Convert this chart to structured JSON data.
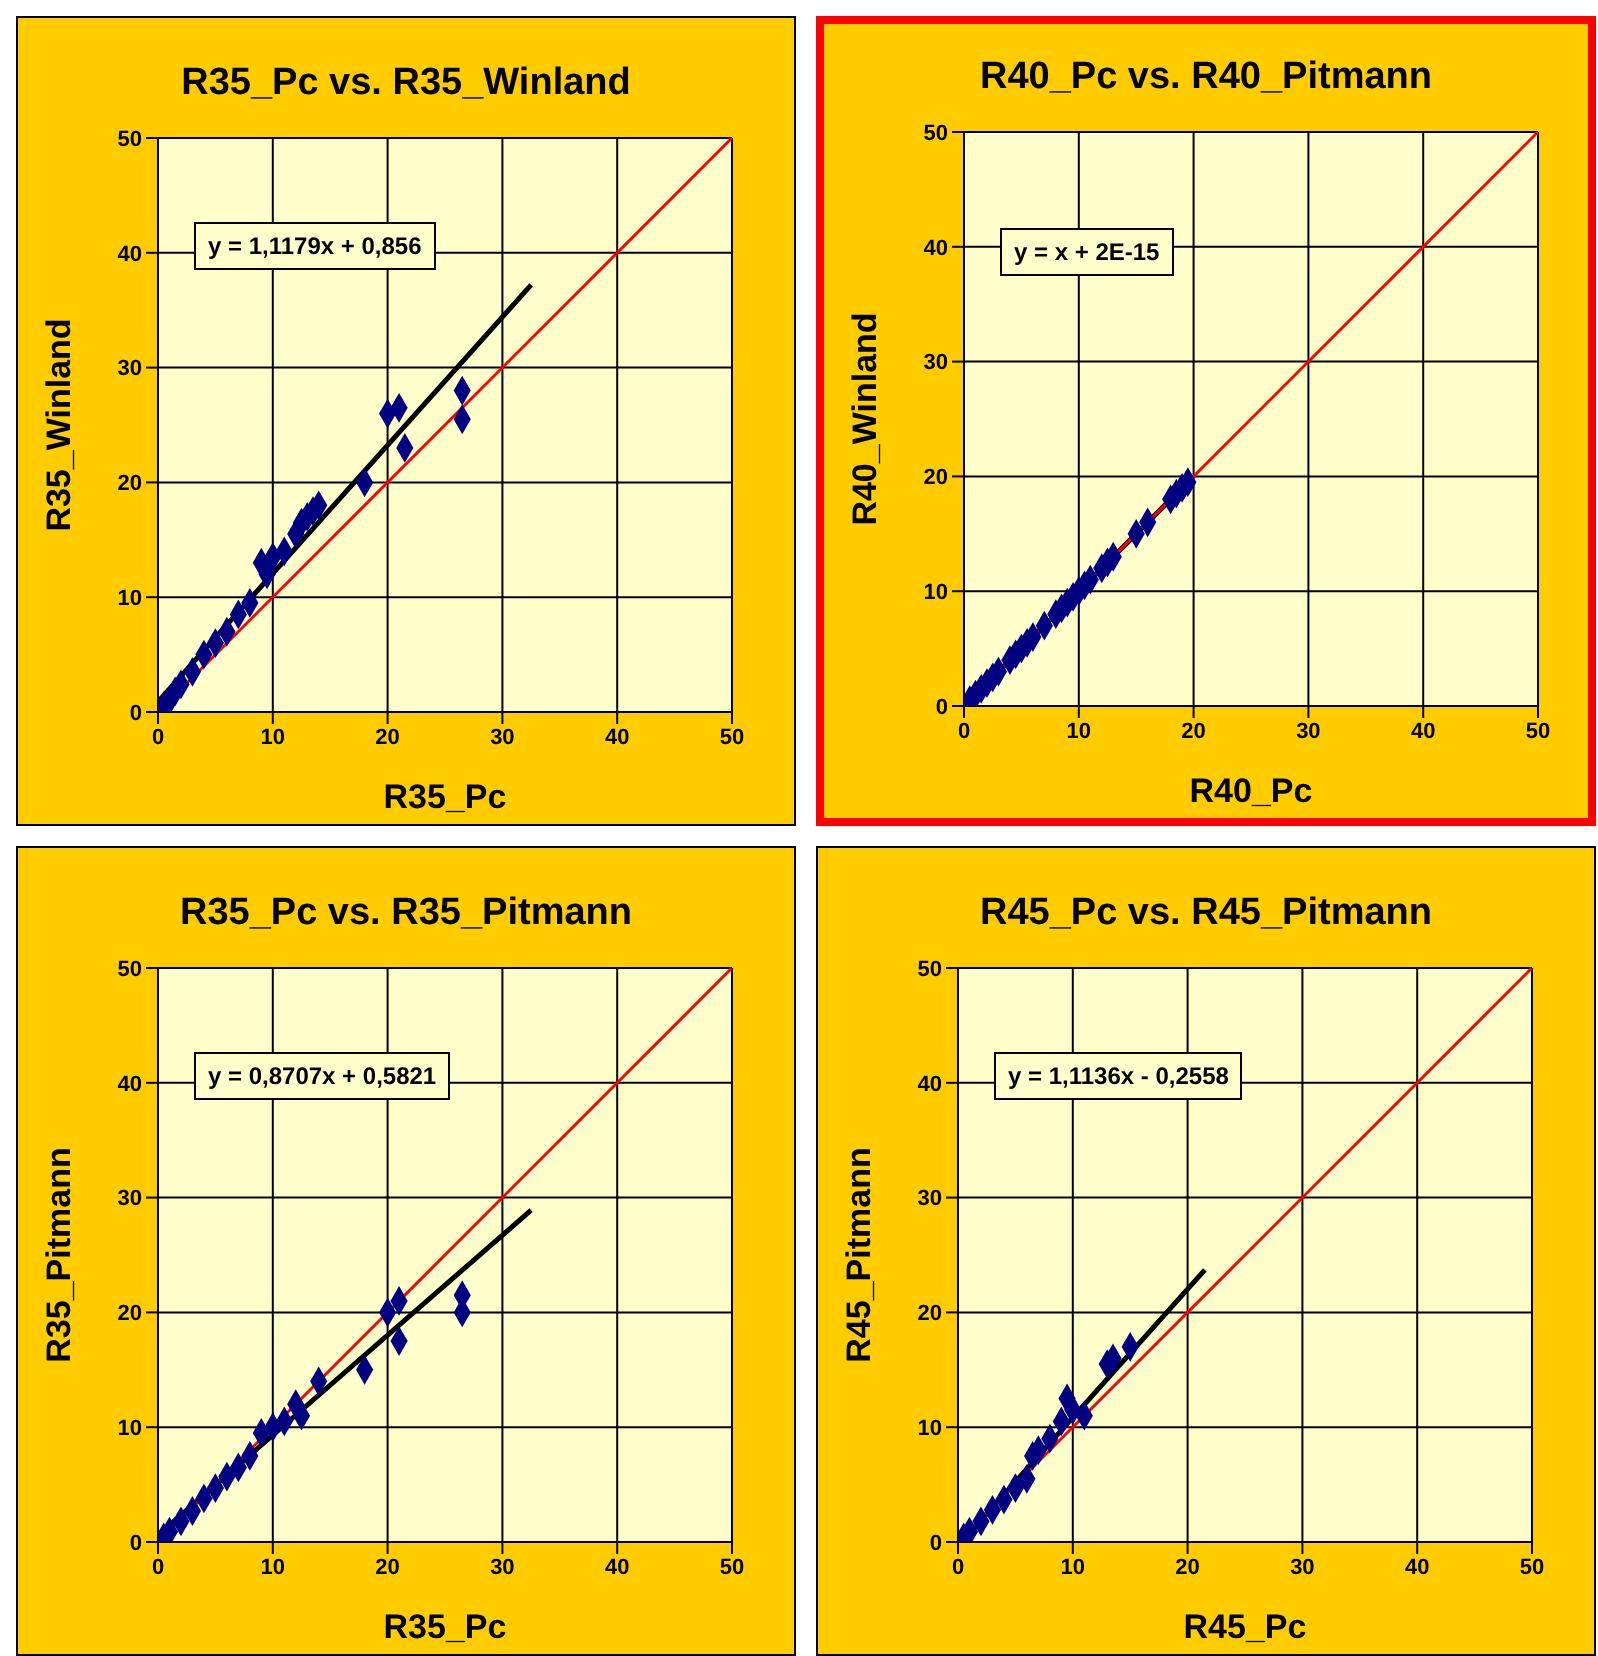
{
  "chart_data": [
    {
      "type": "scatter",
      "title": "R35_Pc vs. R35_Winland",
      "xlabel": "R35_Pc",
      "ylabel": "R35_Winland",
      "xlim": [
        0,
        50
      ],
      "ylim": [
        0,
        50
      ],
      "xticks": [
        0,
        10,
        20,
        30,
        40,
        50
      ],
      "yticks": [
        0,
        10,
        20,
        30,
        40,
        50
      ],
      "grid": true,
      "annotations": [
        "y = 1,1179x + 0,856"
      ],
      "series": [
        {
          "color": "#000080",
          "marker": "diamond",
          "x": [
            0.5,
            1,
            1.5,
            2,
            3,
            4,
            5,
            6,
            7,
            8,
            9,
            9.5,
            10,
            11,
            12,
            12.5,
            13,
            13.5,
            14,
            18,
            20,
            21,
            21.5,
            26.5,
            26.5
          ],
          "values": [
            0.5,
            1,
            1.8,
            2.4,
            3.5,
            5,
            6,
            7,
            8.5,
            9.5,
            13,
            12,
            13.5,
            14,
            15.5,
            16.5,
            17,
            17.5,
            18,
            20,
            26,
            26.5,
            23,
            28,
            25.5
          ]
        },
        {
          "type": "line",
          "color": "#000000",
          "marker": "none",
          "x": [
            0,
            32.5
          ],
          "values": [
            0.9,
            37.2
          ]
        },
        {
          "type": "line",
          "color": "#ff0000",
          "marker": "none",
          "x": [
            0,
            50
          ],
          "values": [
            0,
            50
          ]
        }
      ]
    },
    {
      "type": "scatter",
      "title": "R40_Pc vs. R40_Pitmann",
      "xlabel": "R40_Pc",
      "ylabel": "R40_Winland",
      "xlim": [
        0,
        50
      ],
      "ylim": [
        0,
        50
      ],
      "xticks": [
        0,
        10,
        20,
        30,
        40,
        50
      ],
      "yticks": [
        0,
        10,
        20,
        30,
        40,
        50
      ],
      "grid": true,
      "annotations": [
        "y = x + 2E-15"
      ],
      "series": [
        {
          "color": "#000080",
          "marker": "diamond",
          "x": [
            0.5,
            1,
            1.5,
            2,
            2.5,
            3,
            4,
            4.5,
            5,
            5.5,
            6,
            7,
            8,
            8.5,
            9,
            9.5,
            10,
            10.5,
            11,
            12,
            12.5,
            13,
            15,
            16,
            18,
            18.5,
            19,
            19.5
          ],
          "values": [
            0.5,
            1,
            1.5,
            2,
            2.5,
            3,
            4,
            4.5,
            5,
            5.5,
            6,
            7,
            8,
            8.5,
            9,
            9.5,
            10,
            10.5,
            11,
            12,
            12.5,
            13,
            15,
            16,
            18,
            18.5,
            19,
            19.5
          ]
        },
        {
          "type": "line",
          "color": "#000000",
          "marker": "none",
          "x": [
            0,
            19.5
          ],
          "values": [
            0,
            19.5
          ]
        },
        {
          "type": "line",
          "color": "#ff0000",
          "marker": "none",
          "x": [
            0,
            50
          ],
          "values": [
            0,
            50
          ]
        }
      ]
    },
    {
      "type": "scatter",
      "title": "R35_Pc vs. R35_Pitmann",
      "xlabel": "R35_Pc",
      "ylabel": "R35_Pitmann",
      "xlim": [
        0,
        50
      ],
      "ylim": [
        0,
        50
      ],
      "xticks": [
        0,
        10,
        20,
        30,
        40,
        50
      ],
      "yticks": [
        0,
        10,
        20,
        30,
        40,
        50
      ],
      "grid": true,
      "annotations": [
        "y = 0,8707x + 0,5821"
      ],
      "series": [
        {
          "color": "#000080",
          "marker": "diamond",
          "x": [
            0.5,
            1,
            2,
            3,
            4,
            5,
            6,
            7,
            8,
            9,
            10,
            11,
            12,
            12.5,
            14,
            18,
            20,
            21,
            21,
            26.5,
            26.5
          ],
          "values": [
            0.4,
            0.9,
            1.8,
            2.7,
            3.8,
            4.7,
            5.7,
            6.5,
            7.5,
            9.5,
            10,
            10.5,
            12,
            11,
            14,
            15,
            20,
            21,
            17.5,
            21.5,
            20
          ]
        },
        {
          "type": "line",
          "color": "#000000",
          "marker": "none",
          "x": [
            0,
            32.5
          ],
          "values": [
            0.6,
            28.9
          ]
        },
        {
          "type": "line",
          "color": "#ff0000",
          "marker": "none",
          "x": [
            0,
            50
          ],
          "values": [
            0,
            50
          ]
        }
      ]
    },
    {
      "type": "scatter",
      "title": "R45_Pc vs. R45_Pitmann",
      "xlabel": "R45_Pc",
      "ylabel": "R45_Pitmann",
      "xlim": [
        0,
        50
      ],
      "ylim": [
        0,
        50
      ],
      "xticks": [
        0,
        10,
        20,
        30,
        40,
        50
      ],
      "yticks": [
        0,
        10,
        20,
        30,
        40,
        50
      ],
      "grid": true,
      "annotations": [
        "y = 1,1136x - 0,2558"
      ],
      "series": [
        {
          "color": "#000080",
          "marker": "diamond",
          "x": [
            0.5,
            1,
            2,
            3,
            4,
            5,
            6,
            6.5,
            7,
            8,
            9,
            9.5,
            10,
            11,
            13,
            13.5,
            15
          ],
          "values": [
            0.4,
            0.9,
            1.8,
            2.8,
            3.7,
            4.7,
            5.5,
            7.5,
            8,
            9,
            10.5,
            12.5,
            11.5,
            11,
            15.5,
            16,
            17
          ]
        },
        {
          "type": "line",
          "color": "#000000",
          "marker": "none",
          "x": [
            0.3,
            21.5
          ],
          "values": [
            0,
            23.7
          ]
        },
        {
          "type": "line",
          "color": "#ff0000",
          "marker": "none",
          "x": [
            0,
            50
          ],
          "values": [
            0,
            50
          ]
        }
      ]
    }
  ]
}
